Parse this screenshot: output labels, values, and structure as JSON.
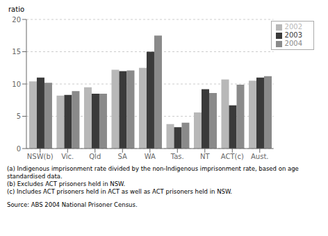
{
  "chart_data": {
    "type": "bar",
    "categories": [
      "NSW(b)",
      "Vic.",
      "Qld",
      "SA",
      "WA",
      "Tas.",
      "NT",
      "ACT(c)",
      "Aust."
    ],
    "series": [
      {
        "name": "2002",
        "color": "#b8b8b8",
        "values": [
          10.4,
          8.2,
          9.5,
          12.2,
          12.5,
          3.8,
          5.6,
          10.7,
          10.5
        ]
      },
      {
        "name": "2003",
        "color": "#3a3a3a",
        "values": [
          11.0,
          8.3,
          8.5,
          12.0,
          15.0,
          3.3,
          9.2,
          6.7,
          11.0
        ]
      },
      {
        "name": "2004",
        "color": "#8a8a8a",
        "values": [
          10.2,
          8.9,
          8.5,
          12.1,
          17.5,
          4.0,
          8.6,
          9.9,
          11.2
        ]
      }
    ],
    "ylabel": "ratio",
    "ylim": [
      0,
      20
    ],
    "yticks": [
      0,
      5,
      10,
      15,
      20
    ],
    "grid": true,
    "legend": "upper right",
    "annotations": [
      "(a) Indigenous imprisonment rate divided by the non-Indigenous imprisonment rate, based on age standardised data.",
      "(b) Excludes ACT prisoners held in NSW.",
      "(c) Includes ACT prisoners held in ACT as well as ACT prisoners held in NSW.",
      "Source: ABS 2004 National Prisoner Census."
    ]
  }
}
